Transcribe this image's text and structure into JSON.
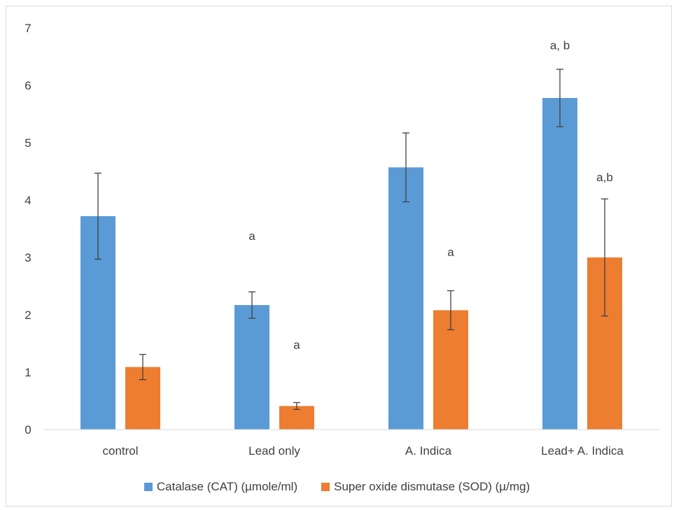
{
  "chart_data": {
    "type": "bar",
    "categories": [
      "control",
      "Lead only",
      "A. Indica",
      "Lead+ A. Indica"
    ],
    "series": [
      {
        "name": "Catalase (CAT) (µmole/ml)",
        "color": "#5b9bd5",
        "values": [
          3.72,
          2.17,
          4.57,
          5.78
        ],
        "errors": [
          0.75,
          0.23,
          0.6,
          0.5
        ],
        "annotations": [
          "",
          "a",
          "",
          "a, b"
        ],
        "annotation_values": [
          null,
          3.38,
          null,
          6.7
        ]
      },
      {
        "name": "Super oxide dismutase (SOD) (µ/mg)",
        "color": "#ed7d31",
        "values": [
          1.09,
          0.41,
          2.08,
          3.0
        ],
        "errors": [
          0.22,
          0.06,
          0.34,
          1.02
        ],
        "annotations": [
          "",
          "a",
          "a",
          "a,b"
        ],
        "annotation_values": [
          null,
          1.48,
          3.1,
          4.4
        ]
      }
    ],
    "ylim": [
      0,
      7
    ],
    "yticks": [
      0,
      1,
      2,
      3,
      4,
      5,
      6,
      7
    ],
    "grid": false,
    "legend": "bottom"
  }
}
